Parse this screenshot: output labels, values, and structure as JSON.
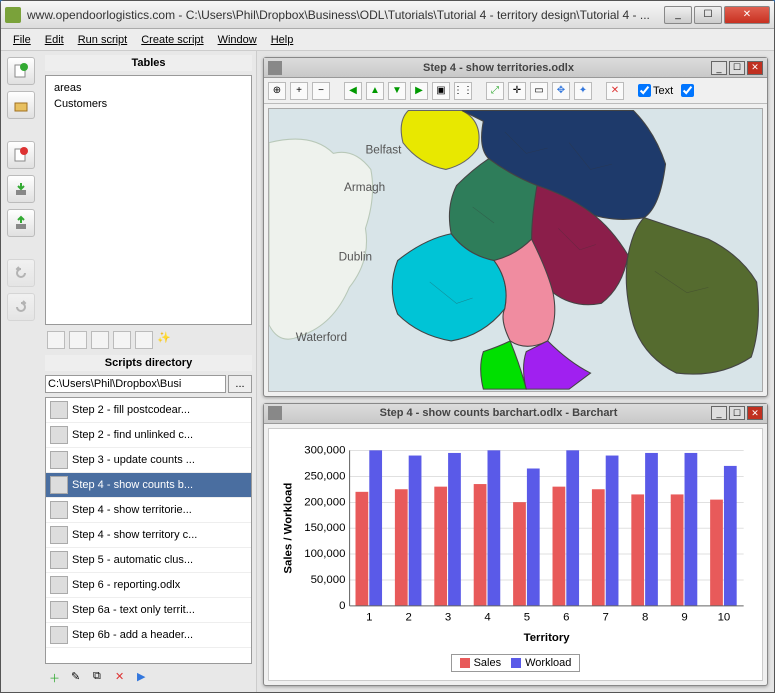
{
  "window": {
    "title": "www.opendoorlogistics.com - C:\\Users\\Phil\\Dropbox\\Business\\ODL\\Tutorials\\Tutorial 4 - territory design\\Tutorial 4 - ..."
  },
  "menu": {
    "items": [
      "File",
      "Edit",
      "Run script",
      "Create script",
      "Window",
      "Help"
    ]
  },
  "tables": {
    "header": "Tables",
    "items": [
      "areas",
      "Customers"
    ]
  },
  "scripts": {
    "header": "Scripts directory",
    "path": "C:\\Users\\Phil\\Dropbox\\Busi",
    "browse": "...",
    "items": [
      "Step 2 - fill postcodear...",
      "Step 2 - find unlinked c...",
      "Step 3 - update counts ...",
      "Step 4 - show counts b...",
      "Step 4 - show territorie...",
      "Step 4 - show territory c...",
      "Step 5 - automatic clus...",
      "Step 6 - reporting.odlx",
      "Step 6a - text only territ...",
      "Step 6b - add a header..."
    ],
    "selected_index": 3
  },
  "map_window": {
    "title": "Step 4 - show territories.odlx",
    "text_checkbox": "Text",
    "labels": {
      "belfast": "Belfast",
      "armagh": "Armagh",
      "dublin": "Dublin",
      "waterford": "Waterford"
    },
    "territory_colors": [
      "#1e3a6b",
      "#8b1e4a",
      "#556b2f",
      "#00c4d6",
      "#2e7d5a",
      "#f08ca0",
      "#e8e800",
      "#00e000",
      "#a020f0"
    ],
    "sea_color": "#d8e4e8",
    "land_color": "#eef2ed"
  },
  "chart_window": {
    "title": "Step 4 - show counts barchart.odlx - Barchart",
    "chart": {
      "type": "bar",
      "ylabel": "Sales / Workload",
      "xlabel": "Territory",
      "categories": [
        "1",
        "2",
        "3",
        "4",
        "5",
        "6",
        "7",
        "8",
        "9",
        "10"
      ],
      "series": [
        {
          "name": "Sales",
          "color": "#e85a5a",
          "values": [
            220000,
            225000,
            230000,
            235000,
            200000,
            230000,
            225000,
            215000,
            215000,
            205000
          ]
        },
        {
          "name": "Workload",
          "color": "#5a5ae8",
          "values": [
            300000,
            290000,
            295000,
            300000,
            265000,
            300000,
            290000,
            295000,
            295000,
            270000
          ]
        }
      ],
      "ylim": [
        0,
        300000
      ],
      "ytick_step": 50000,
      "yticks": [
        "0",
        "50,000",
        "100,000",
        "150,000",
        "200,000",
        "250,000",
        "300,000"
      ],
      "background": "#ffffff",
      "grid_color": "#c0c0c0",
      "label_fontsize": 11,
      "axis_fontsize": 12,
      "bar_group_width": 0.7
    }
  }
}
